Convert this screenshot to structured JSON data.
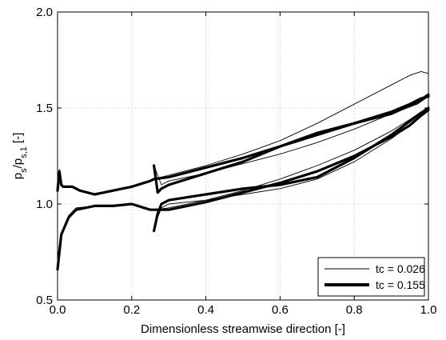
{
  "chart_data": {
    "type": "line",
    "title": "",
    "xlabel": "Dimensionless streamwise direction [-]",
    "ylabel": {
      "main": "p",
      "sub1": "s",
      "mid": "/p",
      "sub2": "s,1",
      "unit": " [-]"
    },
    "xlim": [
      0,
      1
    ],
    "ylim": [
      0.5,
      2.0
    ],
    "xticks": [
      "0.0",
      "0.2",
      "0.4",
      "0.6",
      "0.8",
      "1.0"
    ],
    "yticks": [
      "0.5",
      "1.0",
      "1.5",
      "2.0"
    ],
    "grid": true,
    "legend_position": "bottom-right",
    "series": [
      {
        "name": "tc = 0.026",
        "line_width": "thin",
        "curves": [
          {
            "x": [
              0.0,
              0.005,
              0.01,
              0.015,
              0.02,
              0.04,
              0.06,
              0.1,
              0.15,
              0.2,
              0.25,
              0.26,
              0.3,
              0.4,
              0.5,
              0.6,
              0.7,
              0.8,
              0.9,
              0.95,
              0.98,
              1.0
            ],
            "y": [
              1.08,
              1.18,
              1.1,
              1.09,
              1.09,
              1.09,
              1.07,
              1.05,
              1.07,
              1.09,
              1.12,
              1.13,
              1.15,
              1.2,
              1.26,
              1.33,
              1.42,
              1.52,
              1.62,
              1.67,
              1.69,
              1.68
            ]
          },
          {
            "x": [
              0.0,
              0.01,
              0.03,
              0.05,
              0.1,
              0.15,
              0.2,
              0.25,
              0.26,
              0.3,
              0.4,
              0.5,
              0.6,
              0.7,
              0.8,
              0.9,
              0.95,
              0.98,
              1.0
            ],
            "y": [
              0.72,
              0.85,
              0.94,
              0.98,
              0.99,
              0.99,
              1.0,
              0.97,
              0.97,
              0.98,
              1.02,
              1.07,
              1.13,
              1.2,
              1.28,
              1.38,
              1.44,
              1.48,
              1.49
            ]
          },
          {
            "x": [
              0.26,
              0.28,
              0.3,
              0.4,
              0.5,
              0.6,
              0.7,
              0.8,
              0.9,
              0.97,
              1.0
            ],
            "y": [
              1.2,
              1.1,
              1.12,
              1.16,
              1.21,
              1.26,
              1.32,
              1.39,
              1.47,
              1.52,
              1.56
            ]
          },
          {
            "x": [
              0.26,
              0.28,
              0.3,
              0.4,
              0.5,
              0.6,
              0.7,
              0.8,
              0.9,
              0.97,
              1.0
            ],
            "y": [
              0.88,
              0.98,
              1.0,
              1.02,
              1.05,
              1.08,
              1.13,
              1.22,
              1.34,
              1.44,
              1.49
            ]
          }
        ]
      },
      {
        "name": "tc = 0.155",
        "line_width": "thick",
        "curves": [
          {
            "x": [
              0.0,
              0.005,
              0.01,
              0.015,
              0.02,
              0.04,
              0.06,
              0.1,
              0.15,
              0.2,
              0.25,
              0.26,
              0.3,
              0.4,
              0.5,
              0.6,
              0.7,
              0.8,
              0.9,
              0.95,
              0.98,
              1.0
            ],
            "y": [
              1.07,
              1.17,
              1.1,
              1.09,
              1.09,
              1.09,
              1.07,
              1.05,
              1.07,
              1.09,
              1.12,
              1.13,
              1.14,
              1.19,
              1.24,
              1.3,
              1.36,
              1.42,
              1.48,
              1.52,
              1.55,
              1.56
            ]
          },
          {
            "x": [
              0.0,
              0.01,
              0.03,
              0.05,
              0.1,
              0.15,
              0.2,
              0.25,
              0.26,
              0.3,
              0.4,
              0.5,
              0.6,
              0.7,
              0.8,
              0.9,
              0.95,
              0.98,
              1.0
            ],
            "y": [
              0.66,
              0.84,
              0.93,
              0.97,
              0.99,
              0.99,
              1.0,
              0.97,
              0.97,
              0.97,
              1.01,
              1.06,
              1.11,
              1.17,
              1.25,
              1.35,
              1.41,
              1.46,
              1.49
            ]
          },
          {
            "x": [
              0.26,
              0.27,
              0.28,
              0.3,
              0.4,
              0.5,
              0.6,
              0.7,
              0.8,
              0.9,
              0.97,
              1.0
            ],
            "y": [
              1.2,
              1.06,
              1.08,
              1.1,
              1.16,
              1.22,
              1.3,
              1.37,
              1.42,
              1.47,
              1.53,
              1.57
            ]
          },
          {
            "x": [
              0.26,
              0.27,
              0.28,
              0.3,
              0.4,
              0.5,
              0.6,
              0.7,
              0.8,
              0.9,
              0.97,
              1.0
            ],
            "y": [
              0.86,
              0.95,
              1.0,
              1.02,
              1.05,
              1.08,
              1.1,
              1.14,
              1.24,
              1.36,
              1.46,
              1.5
            ]
          }
        ]
      }
    ]
  }
}
